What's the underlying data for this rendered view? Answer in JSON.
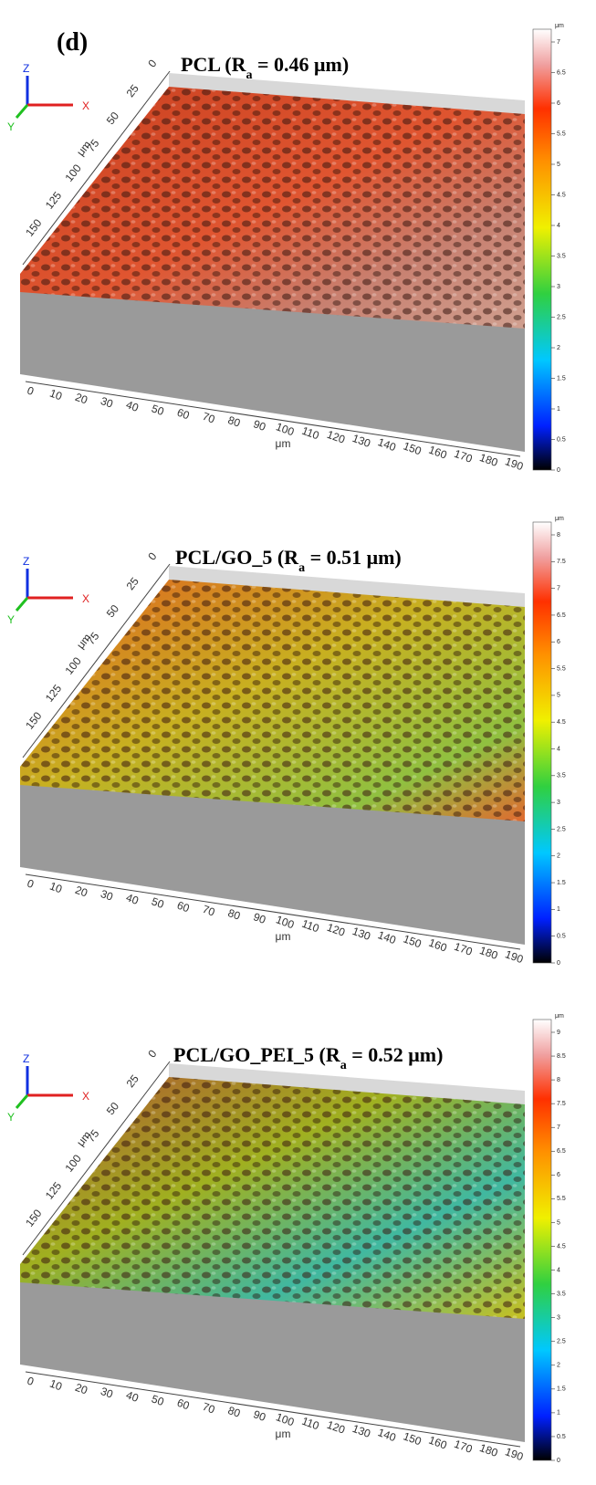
{
  "label": "(d)",
  "panels": [
    {
      "title": [
        "PCL (R",
        "a",
        " = 0.46 μm)"
      ],
      "x_ticks": [
        0,
        10,
        20,
        30,
        40,
        50,
        60,
        70,
        80,
        90,
        100,
        110,
        120,
        130,
        140,
        150,
        160,
        170,
        180,
        190
      ],
      "x_label": "μm",
      "y_ticks": [
        0,
        25,
        50,
        75,
        100,
        125,
        150
      ],
      "y_label": "μm",
      "colorbar_unit": "μm",
      "colorbar_ticks": [
        0,
        0.5,
        1,
        1.5,
        2,
        2.5,
        3,
        3.5,
        4,
        4.5,
        5,
        5.5,
        6,
        6.5,
        7
      ],
      "triad": [
        "Z",
        "X",
        "Y"
      ]
    },
    {
      "title": [
        "PCL/GO_5 (R",
        "a",
        " = 0.51 μm)"
      ],
      "x_ticks": [
        0,
        10,
        20,
        30,
        40,
        50,
        60,
        70,
        80,
        90,
        100,
        110,
        120,
        130,
        140,
        150,
        160,
        170,
        180,
        190
      ],
      "x_label": "μm",
      "y_ticks": [
        0,
        25,
        50,
        75,
        100,
        125,
        150
      ],
      "y_label": "μm",
      "colorbar_unit": "μm",
      "colorbar_ticks": [
        0,
        0.5,
        1,
        1.5,
        2,
        2.5,
        3,
        3.5,
        4,
        4.5,
        5,
        5.5,
        6,
        6.5,
        7,
        7.5,
        8
      ],
      "triad": [
        "Z",
        "X",
        "Y"
      ]
    },
    {
      "title": [
        "PCL/GO_PEI_5 (R",
        "a",
        " = 0.52 μm)"
      ],
      "x_ticks": [
        0,
        10,
        20,
        30,
        40,
        50,
        60,
        70,
        80,
        90,
        100,
        110,
        120,
        130,
        140,
        150,
        160,
        170,
        180,
        190
      ],
      "x_label": "μm",
      "y_ticks": [
        0,
        25,
        50,
        75,
        100,
        125,
        150
      ],
      "y_label": "μm",
      "colorbar_unit": "μm",
      "colorbar_ticks": [
        0,
        0.5,
        1,
        1.5,
        2,
        2.5,
        3,
        3.5,
        4,
        4.5,
        5,
        5.5,
        6,
        6.5,
        7,
        7.5,
        8,
        8.5,
        9
      ],
      "triad": [
        "Z",
        "X",
        "Y"
      ]
    }
  ]
}
